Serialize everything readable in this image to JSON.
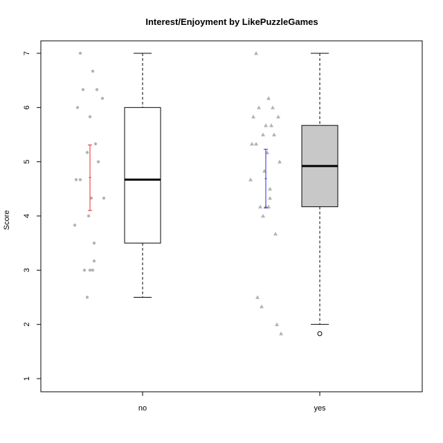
{
  "chart_data": {
    "type": "boxplot",
    "title": "Interest/Enjoyment by LikePuzzleGames",
    "xlabel": "",
    "ylabel": "Score",
    "ylim": [
      0.75,
      7.1
    ],
    "yticks": [
      1,
      2,
      3,
      4,
      5,
      6,
      7
    ],
    "categories": [
      "no",
      "yes"
    ],
    "boxes": [
      {
        "category": "no",
        "fill": "#ffffff",
        "whisker_low": 2.5,
        "q1": 3.5,
        "median": 4.67,
        "q3": 6.0,
        "whisker_high": 7.0,
        "outliers": []
      },
      {
        "category": "yes",
        "fill": "#c8c8c8",
        "whisker_low": 2.0,
        "q1": 4.17,
        "median": 4.92,
        "q3": 5.67,
        "whisker_high": 7.0,
        "outliers": [
          1.83
        ]
      }
    ],
    "mean_ci": [
      {
        "category": "no",
        "color": "#e8292c",
        "mean": 4.71,
        "low": 4.1,
        "high": 5.31
      },
      {
        "category": "yes",
        "color": "#2a2ad8",
        "mean": 4.69,
        "low": 4.15,
        "high": 5.23
      }
    ],
    "jitter_points": [
      {
        "category": "no",
        "shape": "circle",
        "color": "#b3b3b3",
        "values": [
          7.0,
          6.67,
          6.33,
          6.33,
          6.17,
          6.0,
          5.83,
          5.33,
          5.17,
          5.0,
          4.67,
          4.67,
          4.33,
          4.33,
          4.0,
          3.83,
          3.5,
          3.17,
          3.0,
          3.0,
          3.0,
          2.5
        ]
      },
      {
        "category": "yes",
        "shape": "triangle",
        "color": "#b3b3b3",
        "values": [
          7.0,
          6.17,
          6.0,
          6.0,
          5.83,
          5.83,
          5.67,
          5.67,
          5.5,
          5.5,
          5.33,
          5.33,
          5.17,
          5.0,
          4.83,
          4.67,
          4.5,
          4.33,
          4.17,
          4.17,
          4.17,
          4.0,
          3.67,
          2.5,
          2.33,
          2.0,
          1.83
        ]
      }
    ]
  }
}
